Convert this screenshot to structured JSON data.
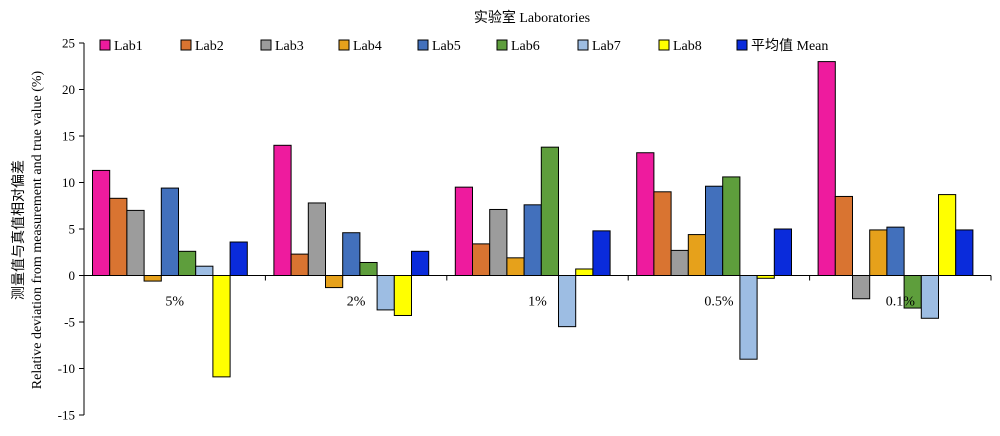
{
  "chart_data": {
    "type": "bar",
    "title": "实验室 Laboratories",
    "ylabel_line1": "测量值与真值相对偏差",
    "ylabel_line2": "Relative deviation from measurement and true value (%)",
    "xlabel": "",
    "categories": [
      "5%",
      "2%",
      "1%",
      "0.5%",
      "0.1%"
    ],
    "ylim": [
      -15,
      25
    ],
    "yticks": [
      -15,
      -10,
      -5,
      0,
      5,
      10,
      15,
      20,
      25
    ],
    "legend_position": "top",
    "series": [
      {
        "name": "Lab1",
        "color": "#EE1B9E",
        "values": [
          11.3,
          14.0,
          9.5,
          13.2,
          23.0
        ]
      },
      {
        "name": "Lab2",
        "color": "#D97431",
        "values": [
          8.3,
          2.3,
          3.4,
          9.0,
          8.5
        ]
      },
      {
        "name": "Lab3",
        "color": "#9C9C9C",
        "values": [
          7.0,
          7.8,
          7.1,
          2.7,
          -2.5
        ]
      },
      {
        "name": "Lab4",
        "color": "#E6A11B",
        "values": [
          -0.6,
          -1.3,
          1.9,
          4.4,
          4.9
        ]
      },
      {
        "name": "Lab5",
        "color": "#4270BC",
        "values": [
          9.4,
          4.6,
          7.6,
          9.6,
          5.2
        ]
      },
      {
        "name": "Lab6",
        "color": "#5E9E3C",
        "values": [
          2.6,
          1.4,
          13.8,
          10.6,
          -3.5
        ]
      },
      {
        "name": "Lab7",
        "color": "#9DBDE3",
        "values": [
          1.0,
          -3.7,
          -5.5,
          -9.0,
          -4.6
        ]
      },
      {
        "name": "Lab8",
        "color": "#FFFF00",
        "values": [
          -10.9,
          -4.3,
          0.7,
          -0.3,
          8.7
        ]
      },
      {
        "name": "平均值 Mean",
        "color": "#0A2BDB",
        "values": [
          3.6,
          2.6,
          4.8,
          5.0,
          4.9
        ]
      }
    ]
  }
}
